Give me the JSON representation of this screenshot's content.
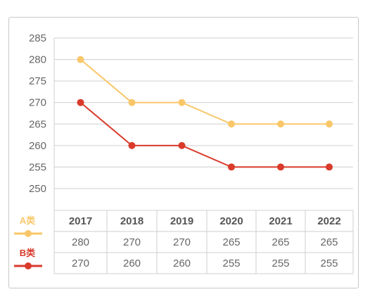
{
  "chart_data": {
    "type": "line",
    "categories": [
      "2017",
      "2018",
      "2019",
      "2020",
      "2021",
      "2022"
    ],
    "ylim": [
      250,
      285
    ],
    "yticks": [
      "285",
      "280",
      "275",
      "270",
      "265",
      "260",
      "255",
      "250"
    ],
    "grid": true,
    "series": [
      {
        "name": "A类",
        "color": "#f9c76a",
        "values": [
          280,
          270,
          270,
          265,
          265,
          265
        ]
      },
      {
        "name": "B类",
        "color": "#d93a2b",
        "values": [
          270,
          260,
          260,
          255,
          255,
          255
        ]
      }
    ],
    "table": {
      "header": [
        "2017",
        "2018",
        "2019",
        "2020",
        "2021",
        "2022"
      ],
      "rows": [
        [
          "280",
          "270",
          "270",
          "265",
          "265",
          "265"
        ],
        [
          "270",
          "260",
          "260",
          "255",
          "255",
          "255"
        ]
      ]
    }
  }
}
